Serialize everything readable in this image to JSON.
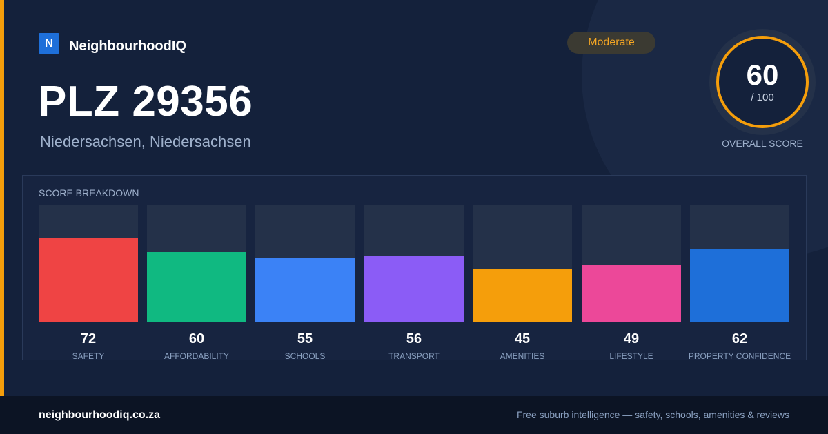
{
  "brand": {
    "logo_letter": "N",
    "name": "NeighbourhoodIQ"
  },
  "header": {
    "title": "PLZ 29356",
    "subtitle": "Niedersachsen, Niedersachsen",
    "badge": "Moderate"
  },
  "overall": {
    "score": "60",
    "denominator": "/ 100",
    "label": "OVERALL SCORE",
    "fraction": 0.6
  },
  "breakdown": {
    "title": "SCORE BREAKDOWN",
    "scale_max": 100,
    "items": [
      {
        "label": "SAFETY",
        "value": "72",
        "score": 72,
        "color": "#ef4444"
      },
      {
        "label": "AFFORDABILITY",
        "value": "60",
        "score": 60,
        "color": "#10b981"
      },
      {
        "label": "SCHOOLS",
        "value": "55",
        "score": 55,
        "color": "#3b82f6"
      },
      {
        "label": "TRANSPORT",
        "value": "56",
        "score": 56,
        "color": "#8b5cf6"
      },
      {
        "label": "AMENITIES",
        "value": "45",
        "score": 45,
        "color": "#f59e0b"
      },
      {
        "label": "LIFESTYLE",
        "value": "49",
        "score": 49,
        "color": "#ec4899"
      },
      {
        "label": "PROPERTY CONFIDENCE",
        "value": "62",
        "score": 62,
        "color": "#1e6fd9"
      }
    ]
  },
  "footer": {
    "domain": "neighbourhoodiq.co.za",
    "tagline": "Free suburb intelligence — safety, schools, amenities & reviews"
  },
  "colors": {
    "accent": "#f59e0b",
    "background": "#14213b",
    "brand": "#1e6fd9"
  }
}
